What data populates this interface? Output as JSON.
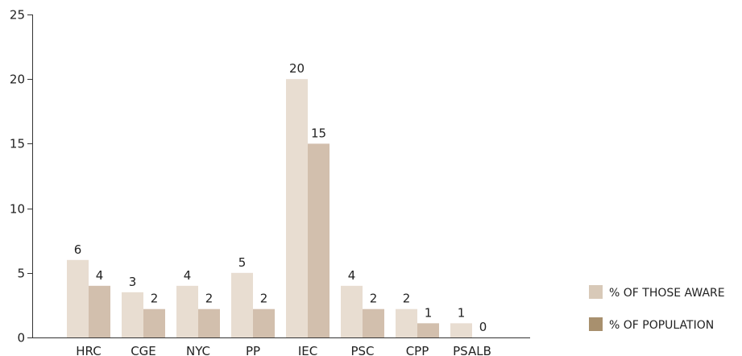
{
  "chart_data": {
    "type": "bar",
    "title": "",
    "xlabel": "",
    "ylabel": "",
    "ylim": [
      0,
      25
    ],
    "yticks": [
      0,
      5,
      10,
      15,
      20,
      25
    ],
    "grid": false,
    "legend_position": "right",
    "categories": [
      "HRC",
      "CGE",
      "NYC",
      "PP",
      "IEC",
      "PSC",
      "CPP",
      "PSALB"
    ],
    "series": [
      {
        "name": "% OF THOSE AWARE",
        "color": "#e8ddd1",
        "values": [
          6,
          3.5,
          4,
          5,
          20,
          4,
          2.2,
          1.1
        ],
        "labels": [
          "6",
          "3",
          "4",
          "5",
          "20",
          "4",
          "2",
          "1"
        ]
      },
      {
        "name": "% OF POPULATION",
        "color": "#d2bfad",
        "values": [
          4,
          2.2,
          2.2,
          2.2,
          15,
          2.2,
          1.1,
          0
        ],
        "labels": [
          "4",
          "2",
          "2",
          "2",
          "15",
          "2",
          "1",
          "0"
        ]
      }
    ],
    "legend": [
      {
        "label": "% OF THOSE AWARE",
        "color": "#d8c9b8"
      },
      {
        "label": "% OF POPULATION",
        "color": "#a8906e"
      }
    ]
  }
}
